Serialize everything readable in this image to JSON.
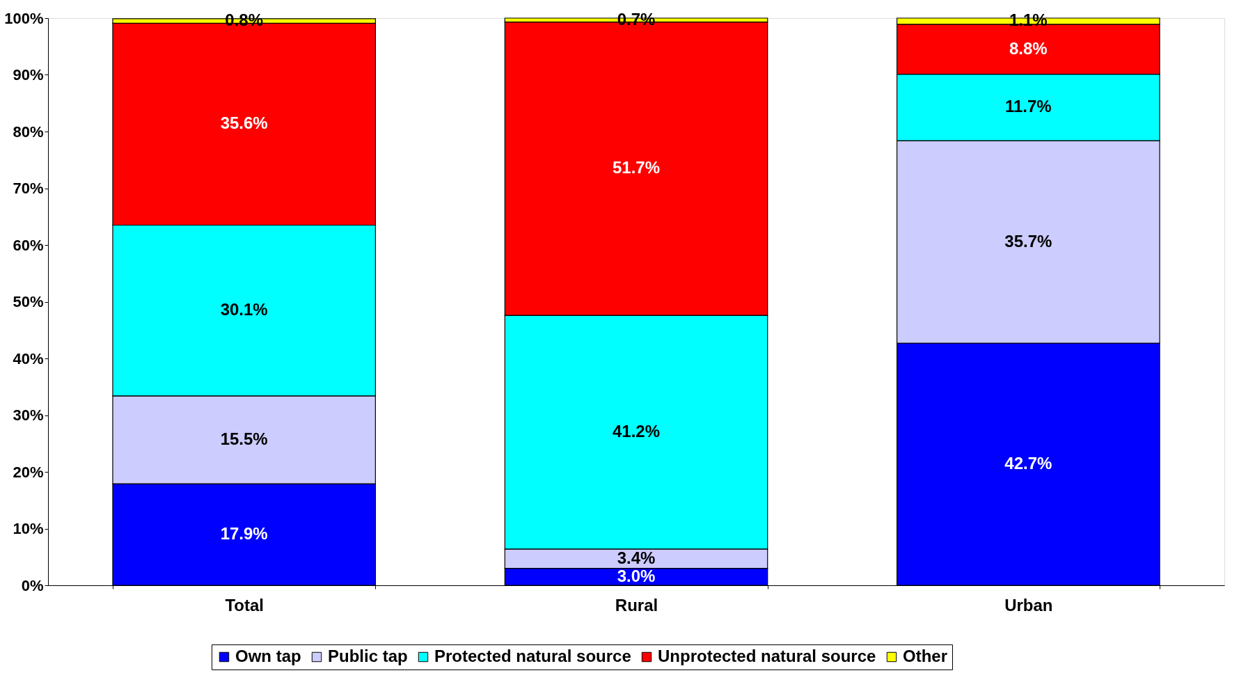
{
  "chart_data": {
    "type": "bar",
    "stacked": true,
    "categories": [
      "Total",
      "Rural",
      "Urban"
    ],
    "series": [
      {
        "name": "Own tap",
        "color": "#0000ff",
        "values": [
          17.9,
          3.0,
          42.7
        ],
        "value_labels": [
          "17.9%",
          "3.0%",
          "42.7%"
        ]
      },
      {
        "name": "Public tap",
        "color": "#ccccff",
        "values": [
          15.5,
          3.4,
          35.7
        ],
        "value_labels": [
          "15.5%",
          "3.4%",
          "35.7%"
        ]
      },
      {
        "name": "Protected natural source",
        "color": "#00ffff",
        "values": [
          30.1,
          41.2,
          11.7
        ],
        "value_labels": [
          "30.1%",
          "41.2%",
          "11.7%"
        ]
      },
      {
        "name": "Unprotected natural source",
        "color": "#ff0000",
        "values": [
          35.6,
          51.7,
          8.8
        ],
        "value_labels": [
          "35.6%",
          "51.7%",
          "8.8%"
        ]
      },
      {
        "name": "Other",
        "color": "#ffff00",
        "values": [
          0.8,
          0.7,
          1.1
        ],
        "value_labels": [
          "0.8%",
          "0.7%",
          "1.1%"
        ]
      }
    ],
    "ylim": [
      0,
      100
    ],
    "yticks": [
      {
        "value": 0,
        "label": "0%"
      },
      {
        "value": 10,
        "label": "10%"
      },
      {
        "value": 20,
        "label": "20%"
      },
      {
        "value": 30,
        "label": "30%"
      },
      {
        "value": 40,
        "label": "40%"
      },
      {
        "value": 50,
        "label": "50%"
      },
      {
        "value": 60,
        "label": "60%"
      },
      {
        "value": 70,
        "label": "70%"
      },
      {
        "value": 80,
        "label": "80%"
      },
      {
        "value": 90,
        "label": "90%"
      },
      {
        "value": 100,
        "label": "100%"
      }
    ],
    "grid": false,
    "legend": "bottom"
  }
}
